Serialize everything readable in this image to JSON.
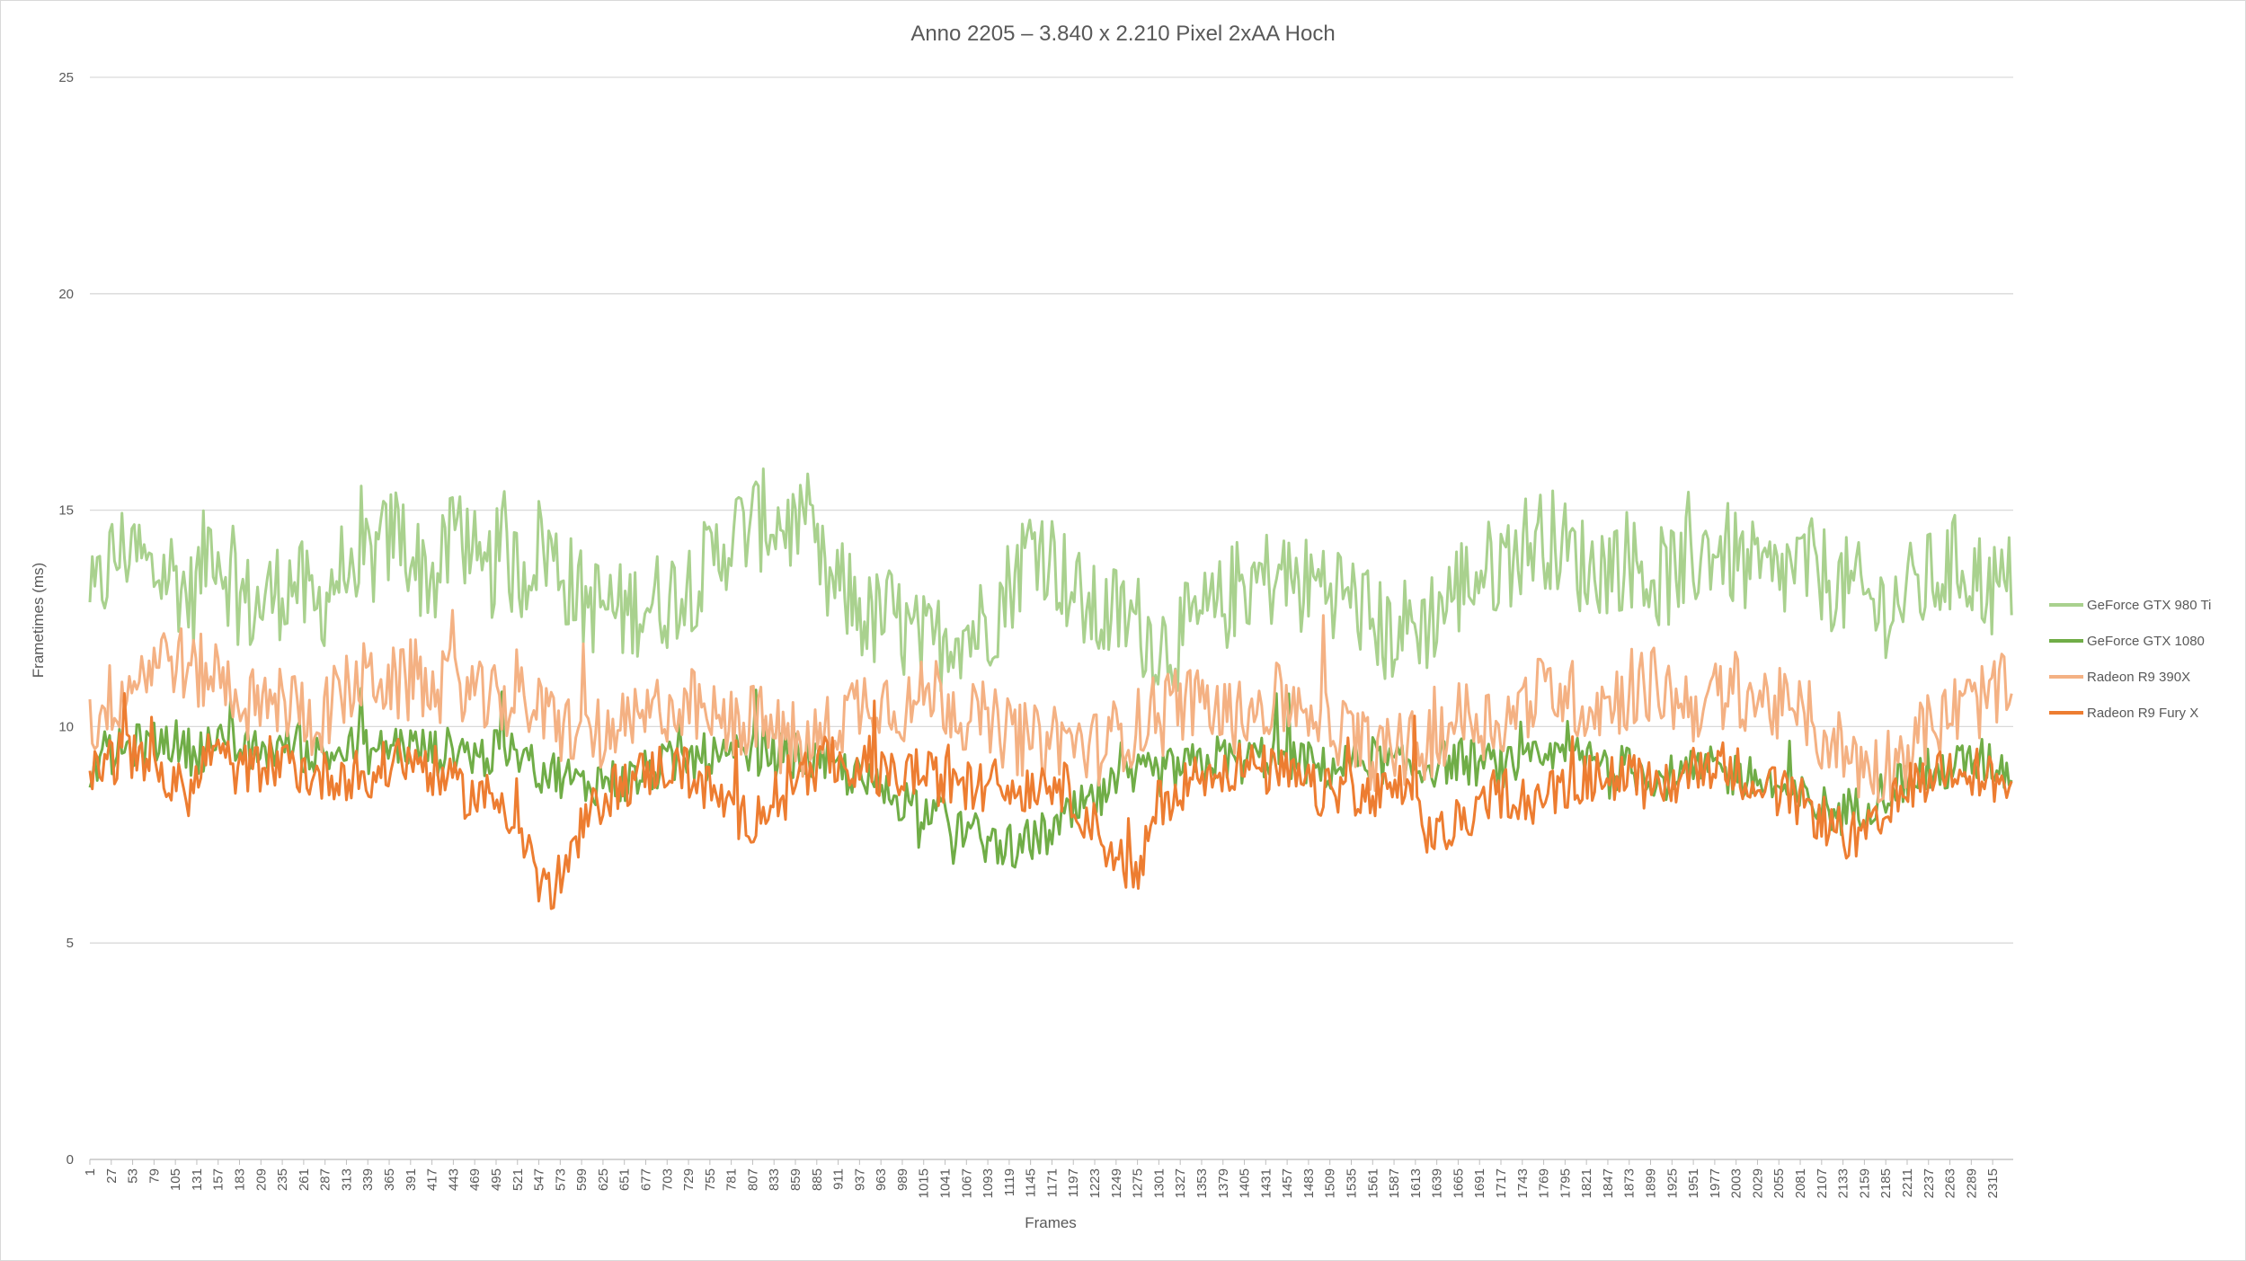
{
  "chart_data": {
    "type": "line",
    "title": "Anno 2205 – 3.840 x 2.210 Pixel 2xAA Hoch",
    "xlabel": "Frames",
    "ylabel": "Frametimes (ms)",
    "ylim": [
      0,
      25
    ],
    "yticks": [
      0,
      5,
      10,
      15,
      20,
      25
    ],
    "xlim": [
      1,
      2340
    ],
    "xticks": [
      1,
      27,
      53,
      79,
      105,
      131,
      157,
      183,
      209,
      235,
      261,
      287,
      313,
      339,
      365,
      391,
      417,
      443,
      469,
      495,
      521,
      547,
      573,
      599,
      625,
      651,
      677,
      703,
      729,
      755,
      781,
      807,
      833,
      859,
      885,
      911,
      937,
      963,
      989,
      1015,
      1041,
      1067,
      1093,
      1119,
      1145,
      1171,
      1197,
      1223,
      1249,
      1275,
      1301,
      1327,
      1353,
      1379,
      1405,
      1431,
      1457,
      1483,
      1509,
      1535,
      1561,
      1587,
      1613,
      1639,
      1665,
      1691,
      1717,
      1743,
      1769,
      1795,
      1821,
      1847,
      1873,
      1899,
      1925,
      1951,
      1977,
      2003,
      2029,
      2055,
      2081,
      2107,
      2133,
      2159,
      2185,
      2211,
      2237,
      2263,
      2289,
      2315
    ],
    "grid": true,
    "legend_position": "right",
    "series": [
      {
        "name": "GeForce GTX 980 Ti",
        "color": "#a9d18e",
        "x": [
          1,
          25,
          50,
          75,
          100,
          125,
          150,
          175,
          200,
          225,
          250,
          275,
          300,
          325,
          350,
          375,
          400,
          425,
          450,
          475,
          500,
          525,
          550,
          575,
          600,
          625,
          650,
          675,
          700,
          725,
          750,
          775,
          800,
          825,
          850,
          875,
          900,
          925,
          950,
          975,
          1000,
          1025,
          1050,
          1075,
          1100,
          1125,
          1150,
          1175,
          1200,
          1225,
          1250,
          1275,
          1300,
          1325,
          1350,
          1375,
          1400,
          1425,
          1450,
          1475,
          1500,
          1525,
          1550,
          1575,
          1600,
          1625,
          1650,
          1675,
          1700,
          1725,
          1750,
          1775,
          1800,
          1825,
          1850,
          1875,
          1900,
          1925,
          1950,
          1975,
          2000,
          2025,
          2050,
          2075,
          2100,
          2125,
          2150,
          2175,
          2200,
          2225,
          2250,
          2275,
          2300,
          2325,
          2340
        ],
        "y": [
          12.5,
          13.8,
          14.2,
          13.5,
          13.6,
          12.9,
          14.5,
          13.2,
          12.7,
          13.1,
          13.4,
          12.6,
          13.5,
          13.8,
          13.9,
          14.6,
          13.7,
          13.4,
          14.9,
          13.1,
          14.0,
          13.5,
          14.3,
          13.6,
          12.9,
          12.8,
          12.6,
          12.9,
          12.9,
          13.3,
          13.6,
          14.3,
          14.6,
          14.8,
          14.7,
          14.2,
          13.2,
          13.0,
          12.4,
          12.6,
          12.0,
          11.8,
          12.3,
          12.2,
          12.6,
          13.5,
          14.4,
          13.8,
          13.0,
          12.5,
          12.6,
          12.4,
          11.9,
          12.0,
          12.4,
          12.7,
          13.3,
          13.4,
          13.5,
          13.2,
          13.4,
          13.1,
          12.7,
          12.1,
          12.3,
          12.4,
          12.9,
          13.4,
          13.6,
          13.9,
          14.3,
          14.4,
          14.0,
          13.6,
          13.8,
          13.9,
          13.4,
          13.5,
          13.8,
          14.2,
          13.9,
          13.5,
          13.4,
          13.7,
          13.6,
          13.3,
          13.1,
          12.7,
          12.9,
          13.2,
          13.5,
          13.8,
          13.4,
          13.1,
          13.4
        ]
      },
      {
        "name": "GeForce GTX 1080",
        "color": "#70ad47",
        "x": [
          1,
          25,
          50,
          75,
          100,
          125,
          150,
          175,
          200,
          225,
          250,
          275,
          300,
          325,
          350,
          375,
          400,
          425,
          450,
          475,
          500,
          525,
          550,
          575,
          600,
          625,
          650,
          675,
          700,
          725,
          750,
          775,
          800,
          825,
          850,
          875,
          900,
          925,
          950,
          975,
          1000,
          1025,
          1050,
          1075,
          1100,
          1125,
          1150,
          1175,
          1200,
          1225,
          1250,
          1275,
          1300,
          1325,
          1350,
          1375,
          1400,
          1425,
          1450,
          1475,
          1500,
          1525,
          1550,
          1575,
          1600,
          1625,
          1650,
          1675,
          1700,
          1725,
          1750,
          1775,
          1800,
          1825,
          1850,
          1875,
          1900,
          1925,
          1950,
          1975,
          2000,
          2025,
          2050,
          2075,
          2100,
          2125,
          2150,
          2175,
          2200,
          2225,
          2250,
          2275,
          2300,
          2325,
          2340
        ],
        "y": [
          9.0,
          9.3,
          9.5,
          9.6,
          9.7,
          9.4,
          9.6,
          9.5,
          9.4,
          9.5,
          9.6,
          9.3,
          9.4,
          9.5,
          9.4,
          9.6,
          9.5,
          9.4,
          9.5,
          9.3,
          9.4,
          9.3,
          9.0,
          8.9,
          8.6,
          8.8,
          8.7,
          8.9,
          9.1,
          9.2,
          9.3,
          9.2,
          9.3,
          9.4,
          9.3,
          9.3,
          9.1,
          8.9,
          8.6,
          8.4,
          8.3,
          8.0,
          7.8,
          7.5,
          7.3,
          7.2,
          7.4,
          7.6,
          8.0,
          8.3,
          8.6,
          8.8,
          8.9,
          9.0,
          9.1,
          9.3,
          9.2,
          9.3,
          9.4,
          9.2,
          9.0,
          9.1,
          9.3,
          9.2,
          9.0,
          9.1,
          9.2,
          9.2,
          9.1,
          9.0,
          9.1,
          9.2,
          9.3,
          9.2,
          9.1,
          9.0,
          8.9,
          8.8,
          8.9,
          9.0,
          8.9,
          8.8,
          8.6,
          8.4,
          8.2,
          8.0,
          8.1,
          8.4,
          8.7,
          8.9,
          9.0,
          9.1,
          9.2,
          9.1,
          9.0
        ]
      },
      {
        "name": "Radeon R9 390X",
        "color": "#f4b183",
        "x": [
          1,
          25,
          50,
          75,
          100,
          125,
          150,
          175,
          200,
          225,
          250,
          275,
          300,
          325,
          350,
          375,
          400,
          425,
          450,
          475,
          500,
          525,
          550,
          575,
          600,
          625,
          650,
          675,
          700,
          725,
          750,
          775,
          800,
          825,
          850,
          875,
          900,
          925,
          950,
          975,
          1000,
          1025,
          1050,
          1075,
          1100,
          1125,
          1150,
          1175,
          1200,
          1225,
          1250,
          1275,
          1300,
          1325,
          1350,
          1375,
          1400,
          1425,
          1450,
          1475,
          1500,
          1525,
          1550,
          1575,
          1600,
          1625,
          1650,
          1675,
          1700,
          1725,
          1750,
          1775,
          1800,
          1825,
          1850,
          1875,
          1900,
          1925,
          1950,
          1975,
          2000,
          2025,
          2050,
          2075,
          2100,
          2125,
          2150,
          2175,
          2200,
          2225,
          2250,
          2275,
          2300,
          2325,
          2340
        ],
        "y": [
          10.0,
          10.6,
          11.0,
          11.5,
          11.7,
          11.2,
          11.3,
          10.9,
          10.3,
          10.6,
          10.5,
          10.1,
          10.6,
          11.0,
          11.2,
          10.9,
          11.0,
          10.8,
          11.1,
          10.6,
          10.5,
          10.8,
          10.2,
          10.0,
          9.9,
          9.8,
          9.9,
          10.1,
          10.5,
          10.6,
          10.2,
          10.0,
          10.2,
          10.0,
          9.6,
          9.5,
          9.9,
          10.4,
          10.7,
          10.6,
          10.4,
          10.9,
          10.5,
          10.3,
          10.0,
          9.8,
          9.6,
          9.8,
          9.6,
          9.5,
          9.8,
          10.0,
          10.4,
          10.6,
          10.5,
          10.3,
          10.2,
          10.5,
          10.6,
          10.5,
          10.3,
          9.9,
          9.5,
          9.3,
          9.4,
          9.6,
          10.0,
          10.3,
          10.1,
          10.2,
          10.6,
          10.9,
          10.7,
          10.5,
          10.6,
          10.8,
          11.0,
          10.7,
          10.5,
          10.6,
          10.9,
          10.7,
          10.5,
          10.3,
          9.9,
          9.6,
          9.2,
          9.0,
          9.3,
          9.8,
          10.1,
          10.4,
          10.6,
          10.8,
          10.5
        ]
      },
      {
        "name": "Radeon R9 Fury X",
        "color": "#ed7d31",
        "x": [
          1,
          25,
          50,
          75,
          100,
          125,
          150,
          175,
          200,
          225,
          250,
          275,
          300,
          325,
          350,
          375,
          400,
          425,
          450,
          475,
          500,
          525,
          550,
          575,
          600,
          625,
          650,
          675,
          700,
          725,
          750,
          775,
          800,
          825,
          850,
          875,
          900,
          925,
          950,
          975,
          1000,
          1025,
          1050,
          1075,
          1100,
          1125,
          1150,
          1175,
          1200,
          1225,
          1250,
          1275,
          1300,
          1325,
          1350,
          1375,
          1400,
          1425,
          1450,
          1475,
          1500,
          1525,
          1550,
          1575,
          1600,
          1625,
          1650,
          1675,
          1700,
          1725,
          1750,
          1775,
          1800,
          1825,
          1850,
          1875,
          1900,
          1925,
          1950,
          1975,
          2000,
          2025,
          2050,
          2075,
          2100,
          2125,
          2150,
          2175,
          2200,
          2225,
          2250,
          2275,
          2300,
          2325,
          2340
        ],
        "y": [
          8.8,
          9.2,
          9.4,
          9.2,
          8.6,
          8.5,
          9.6,
          9.0,
          9.0,
          9.3,
          9.1,
          8.8,
          8.9,
          8.9,
          8.8,
          9.3,
          9.2,
          8.9,
          8.5,
          8.4,
          8.3,
          7.8,
          6.2,
          6.5,
          7.6,
          8.4,
          8.7,
          8.9,
          9.1,
          9.0,
          8.6,
          8.2,
          7.8,
          8.2,
          8.8,
          9.0,
          9.2,
          9.1,
          9.0,
          8.8,
          9.0,
          8.8,
          8.7,
          8.6,
          8.7,
          8.5,
          8.7,
          8.8,
          8.3,
          7.6,
          7.0,
          6.5,
          8.2,
          8.6,
          8.9,
          9.0,
          9.1,
          9.0,
          8.9,
          8.7,
          8.4,
          8.6,
          8.3,
          8.4,
          8.6,
          7.6,
          7.5,
          7.9,
          8.4,
          8.5,
          8.3,
          8.4,
          8.7,
          8.8,
          8.9,
          8.8,
          8.6,
          8.7,
          9.0,
          9.2,
          9.0,
          8.8,
          8.5,
          8.3,
          8.0,
          7.6,
          7.4,
          7.6,
          8.3,
          8.9,
          9.0,
          9.2,
          8.9,
          8.7,
          8.6
        ]
      }
    ]
  }
}
